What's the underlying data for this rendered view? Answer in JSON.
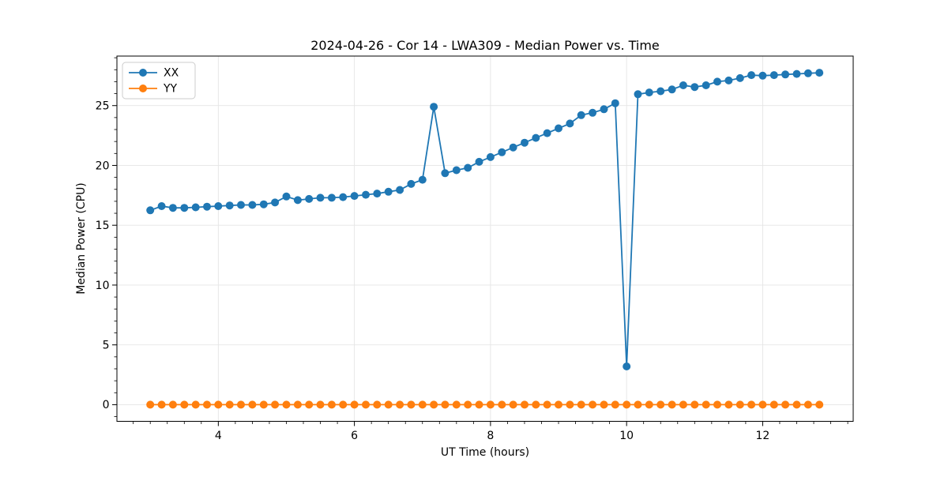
{
  "chart_data": {
    "type": "line",
    "title": "2024-04-26 - Cor 14 - LWA309 - Median Power vs. Time",
    "xlabel": "UT Time (hours)",
    "ylabel": "Median Power (CPU)",
    "xlim": [
      2.51,
      13.33
    ],
    "ylim": [
      -1.39,
      29.14
    ],
    "x_ticks": [
      4,
      6,
      8,
      10,
      12
    ],
    "y_ticks": [
      0,
      5,
      10,
      15,
      20,
      25
    ],
    "x_minor_step": 0.25,
    "y_minor_step": 1,
    "grid": true,
    "grid_color": "#e5e5e5",
    "legend_position": "upper left",
    "x": [
      3.0,
      3.167,
      3.333,
      3.5,
      3.667,
      3.833,
      4.0,
      4.167,
      4.333,
      4.5,
      4.667,
      4.833,
      5.0,
      5.167,
      5.333,
      5.5,
      5.667,
      5.833,
      6.0,
      6.167,
      6.333,
      6.5,
      6.667,
      6.833,
      7.0,
      7.167,
      7.333,
      7.5,
      7.667,
      7.833,
      8.0,
      8.167,
      8.333,
      8.5,
      8.667,
      8.833,
      9.0,
      9.167,
      9.333,
      9.5,
      9.667,
      9.833,
      10.0,
      10.167,
      10.333,
      10.5,
      10.667,
      10.833,
      11.0,
      11.167,
      11.333,
      11.5,
      11.667,
      11.833,
      12.0,
      12.167,
      12.333,
      12.5,
      12.667,
      12.833
    ],
    "series": [
      {
        "name": "XX",
        "color": "#1f77b4",
        "values": [
          16.25,
          16.6,
          16.45,
          16.45,
          16.5,
          16.55,
          16.6,
          16.65,
          16.7,
          16.7,
          16.75,
          16.9,
          17.4,
          17.1,
          17.2,
          17.3,
          17.3,
          17.35,
          17.45,
          17.55,
          17.65,
          17.8,
          17.95,
          18.45,
          18.8,
          24.9,
          19.35,
          19.6,
          19.8,
          20.3,
          20.7,
          21.1,
          21.5,
          21.9,
          22.3,
          22.7,
          23.1,
          23.5,
          24.2,
          24.4,
          24.7,
          25.2,
          3.2,
          25.95,
          26.1,
          26.2,
          26.35,
          26.7,
          26.55,
          26.7,
          27.0,
          27.1,
          27.3,
          27.55,
          27.5,
          27.55,
          27.6,
          27.65,
          27.7,
          27.75
        ]
      },
      {
        "name": "YY",
        "color": "#ff7f0e",
        "values": [
          0,
          0,
          0,
          0,
          0,
          0,
          0,
          0,
          0,
          0,
          0,
          0,
          0,
          0,
          0,
          0,
          0,
          0,
          0,
          0,
          0,
          0,
          0,
          0,
          0,
          0,
          0,
          0,
          0,
          0,
          0,
          0,
          0,
          0,
          0,
          0,
          0,
          0,
          0,
          0,
          0,
          0,
          0,
          0,
          0,
          0,
          0,
          0,
          0,
          0,
          0,
          0,
          0,
          0,
          0,
          0,
          0,
          0,
          0,
          0
        ]
      }
    ]
  }
}
